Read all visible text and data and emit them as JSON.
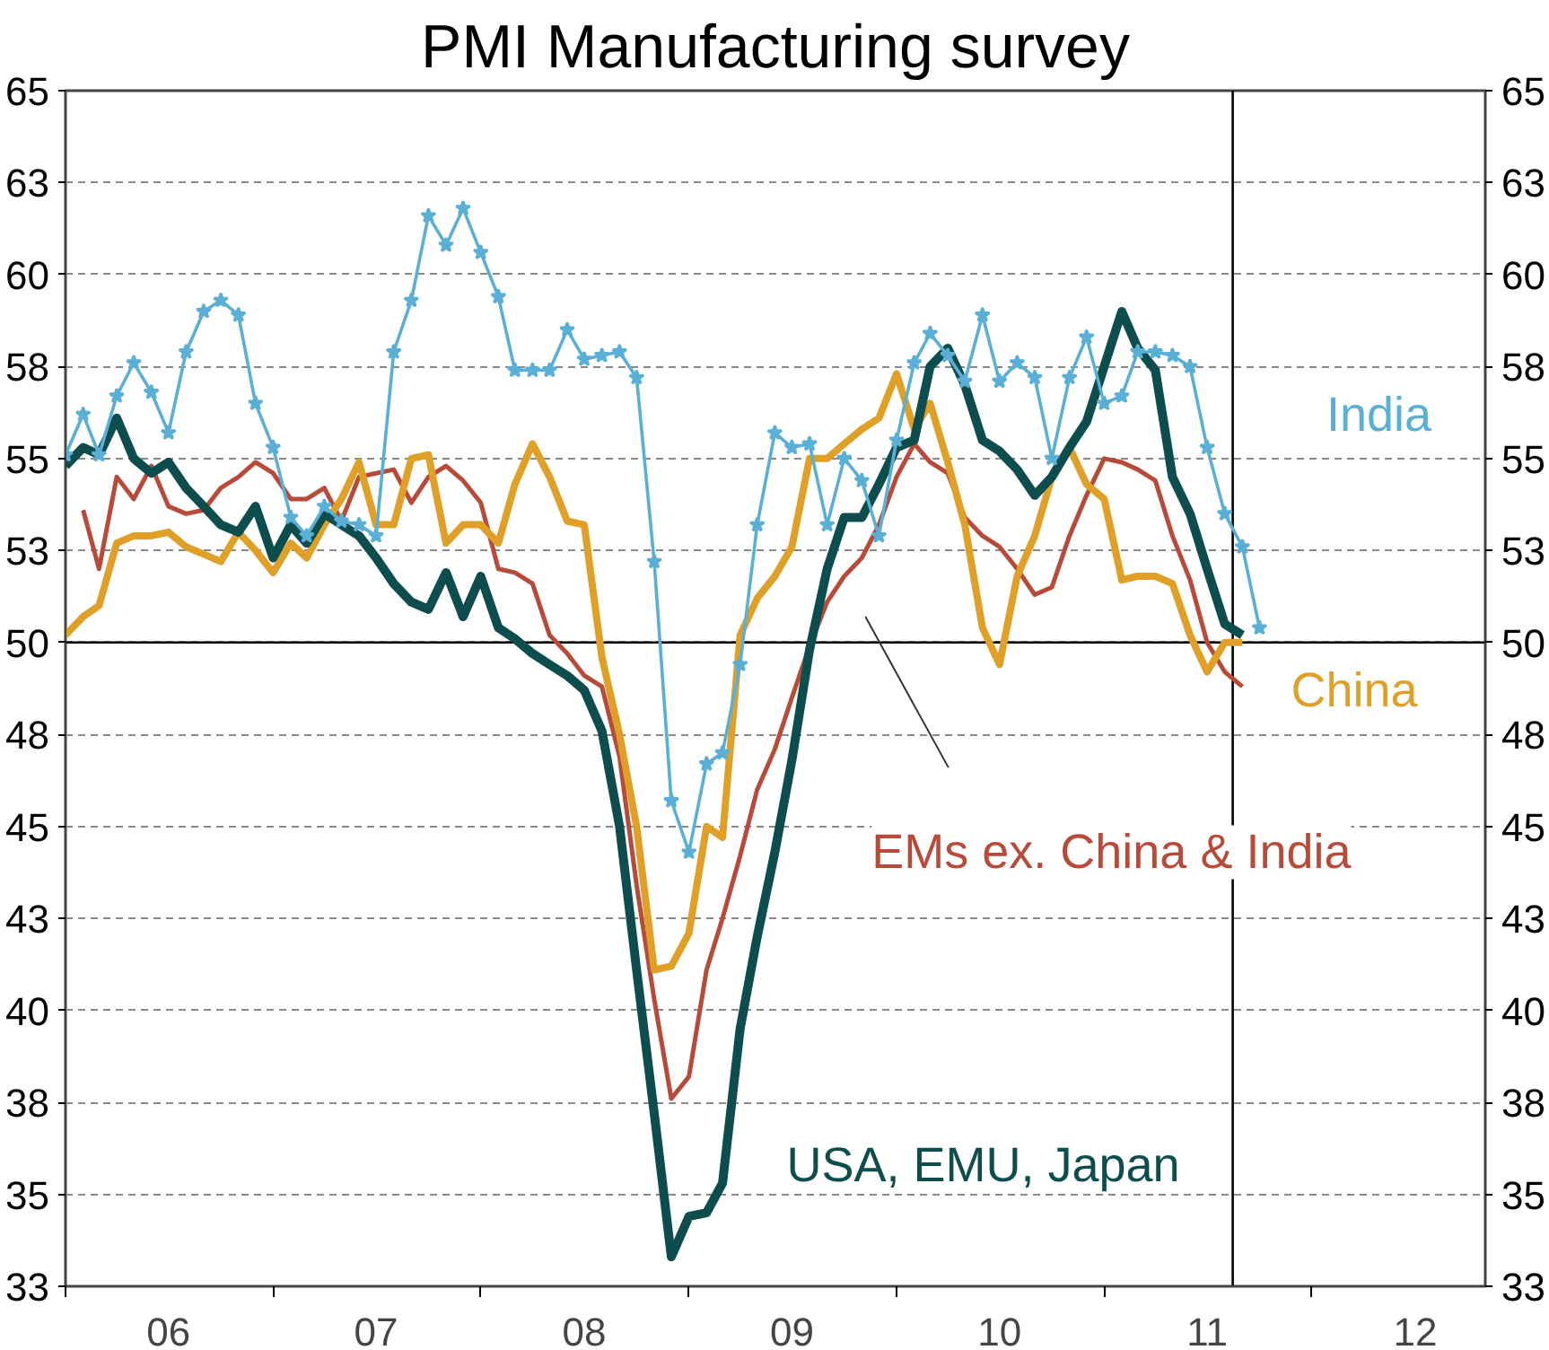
{
  "chart_data": {
    "type": "line",
    "title": "PMI Manufacturing survey",
    "x": [
      "2006-01",
      "2006-02",
      "2006-03",
      "2006-04",
      "2006-05",
      "2006-06",
      "2006-07",
      "2006-08",
      "2006-09",
      "2006-10",
      "2006-11",
      "2006-12",
      "2007-01",
      "2007-02",
      "2007-03",
      "2007-04",
      "2007-05",
      "2007-06",
      "2007-07",
      "2007-08",
      "2007-09",
      "2007-10",
      "2007-11",
      "2007-12",
      "2008-01",
      "2008-02",
      "2008-03",
      "2008-04",
      "2008-05",
      "2008-06",
      "2008-07",
      "2008-08",
      "2008-09",
      "2008-10",
      "2008-11",
      "2008-12",
      "2009-01",
      "2009-02",
      "2009-03",
      "2009-04",
      "2009-05",
      "2009-06",
      "2009-07",
      "2009-08",
      "2009-09",
      "2009-10",
      "2009-11",
      "2009-12",
      "2010-01",
      "2010-02",
      "2010-03",
      "2010-04",
      "2010-05",
      "2010-06",
      "2010-07",
      "2010-08",
      "2010-09",
      "2010-10",
      "2010-11",
      "2010-12",
      "2011-01",
      "2011-02",
      "2011-03",
      "2011-04",
      "2011-05",
      "2011-06",
      "2011-07",
      "2011-08",
      "2011-09",
      "2011-10"
    ],
    "series": [
      {
        "name": "EMs ex. China & India",
        "color": "#b84a3a",
        "values": [
          null,
          53.6,
          52.0,
          54.5,
          53.9,
          54.8,
          53.7,
          53.5,
          53.6,
          54.2,
          54.5,
          54.9,
          54.6,
          53.9,
          53.9,
          54.2,
          53.3,
          54.5,
          54.6,
          54.7,
          53.8,
          54.5,
          54.8,
          54.4,
          53.8,
          52.0,
          51.9,
          51.6,
          50.2,
          49.7,
          49.1,
          48.8,
          46.9,
          43.4,
          40.3,
          37.6,
          38.2,
          41.1,
          42.5,
          44.2,
          46.0,
          47.1,
          48.5,
          49.9,
          51.1,
          51.8,
          52.3,
          53.2,
          54.5,
          55.4,
          54.9,
          54.6,
          53.4,
          52.9,
          52.6,
          52.0,
          51.3,
          51.5,
          52.9,
          54.0,
          55.0,
          54.9,
          54.7,
          54.4,
          52.9,
          51.7,
          50.0,
          49.2,
          48.8,
          null
        ]
      },
      {
        "name": "China",
        "color": "#e0a028",
        "values": [
          50.2,
          50.7,
          51.0,
          52.7,
          52.9,
          52.9,
          53.0,
          52.6,
          52.4,
          52.2,
          53.0,
          52.5,
          51.9,
          52.7,
          52.3,
          53.2,
          53.9,
          54.9,
          53.2,
          53.2,
          55.0,
          55.1,
          52.7,
          53.2,
          53.2,
          52.7,
          54.3,
          55.4,
          54.5,
          53.3,
          53.2,
          49.6,
          47.5,
          45.0,
          41.1,
          41.2,
          42.1,
          45.0,
          44.7,
          50.2,
          51.2,
          51.8,
          52.6,
          55.0,
          55.0,
          55.4,
          55.8,
          56.1,
          57.3,
          55.8,
          56.5,
          54.9,
          53.2,
          50.4,
          49.4,
          51.8,
          52.9,
          54.5,
          55.3,
          54.3,
          53.9,
          51.7,
          51.8,
          51.8,
          51.6,
          50.2,
          49.2,
          50.0,
          50.0,
          null
        ]
      },
      {
        "name": "USA, EMU, Japan",
        "color": "#0e4d4d",
        "values": [
          54.8,
          55.3,
          55.1,
          56.1,
          55.0,
          54.6,
          54.9,
          54.2,
          53.7,
          53.2,
          53.0,
          53.7,
          52.3,
          53.2,
          52.7,
          53.5,
          53.2,
          52.9,
          52.3,
          51.6,
          51.1,
          50.9,
          51.9,
          50.7,
          51.8,
          50.4,
          50.1,
          49.7,
          49.4,
          49.1,
          48.7,
          47.6,
          45.0,
          41.1,
          37.2,
          33.3,
          34.4,
          34.5,
          35.3,
          39.5,
          42.0,
          44.3,
          46.8,
          49.8,
          52.0,
          53.4,
          53.4,
          54.3,
          55.3,
          55.5,
          57.5,
          58.0,
          57.0,
          55.5,
          55.2,
          54.7,
          54.0,
          54.5,
          55.3,
          56.0,
          57.5,
          59.0,
          58.0,
          57.4,
          54.5,
          53.5,
          52.0,
          50.5,
          50.2,
          null
        ]
      },
      {
        "name": "India",
        "color": "#5aafd6",
        "marker": "star",
        "values": [
          55.1,
          56.2,
          55.1,
          56.7,
          57.6,
          56.8,
          55.7,
          57.9,
          59.0,
          59.3,
          58.9,
          56.5,
          55.3,
          53.4,
          52.9,
          53.7,
          53.3,
          53.2,
          52.9,
          57.9,
          59.3,
          61.6,
          60.8,
          61.8,
          60.6,
          59.4,
          57.4,
          57.4,
          57.4,
          58.5,
          57.7,
          57.8,
          57.9,
          57.2,
          52.2,
          45.7,
          44.3,
          46.7,
          47.0,
          49.4,
          53.2,
          55.7,
          55.3,
          55.4,
          53.2,
          55.0,
          54.4,
          52.9,
          55.5,
          57.6,
          58.4,
          57.8,
          57.1,
          58.9,
          57.1,
          57.6,
          57.2,
          55.0,
          57.2,
          58.3,
          56.5,
          56.7,
          57.9,
          57.9,
          57.8,
          57.5,
          55.3,
          53.5,
          52.6,
          50.4
        ]
      }
    ],
    "xlim": [
      "2006",
      "2012-11"
    ],
    "xticks": [
      {
        "value": "2006",
        "label": null
      },
      {
        "value": "2006-07",
        "label": "06"
      },
      {
        "value": "2007",
        "label": null
      },
      {
        "value": "2007-07",
        "label": "07"
      },
      {
        "value": "2008",
        "label": null
      },
      {
        "value": "2008-07",
        "label": "08"
      },
      {
        "value": "2009",
        "label": null
      },
      {
        "value": "2009-07",
        "label": "09"
      },
      {
        "value": "2010",
        "label": null
      },
      {
        "value": "2010-07",
        "label": "10"
      },
      {
        "value": "2011",
        "label": null
      },
      {
        "value": "2011-07",
        "label": "11"
      },
      {
        "value": "2012",
        "label": null
      },
      {
        "value": "2012-07",
        "label": "12"
      }
    ],
    "ylim": [
      32.5,
      65
    ],
    "yticks": [
      {
        "value": 32.5,
        "label": "33"
      },
      35,
      {
        "value": 37.5,
        "label": "38"
      },
      40,
      {
        "value": 42.5,
        "label": "43"
      },
      45,
      {
        "value": 47.5,
        "label": "48"
      },
      50,
      {
        "value": 52.5,
        "label": "53"
      },
      55,
      {
        "value": 57.5,
        "label": "58"
      },
      60,
      {
        "value": 62.5,
        "label": "63"
      },
      65
    ],
    "y2lim": [
      32.5,
      65
    ],
    "y2ticks": [
      {
        "value": 32.5,
        "label": "33"
      },
      35,
      {
        "value": 37.5,
        "label": "38"
      },
      40,
      {
        "value": 42.5,
        "label": "43"
      },
      45,
      {
        "value": 47.5,
        "label": "48"
      },
      50,
      {
        "value": 52.5,
        "label": "53"
      },
      55,
      {
        "value": 57.5,
        "label": "58"
      },
      60,
      {
        "value": 62.5,
        "label": "63"
      },
      65
    ],
    "ref_lines": [
      {
        "axis": "y",
        "value": 50,
        "label": null,
        "color": "#000000"
      },
      {
        "axis": "x",
        "value": "2011-08-15",
        "label": null,
        "color": "#000000"
      }
    ],
    "grid": "y",
    "marker": "none",
    "line_style": "solid"
  }
}
